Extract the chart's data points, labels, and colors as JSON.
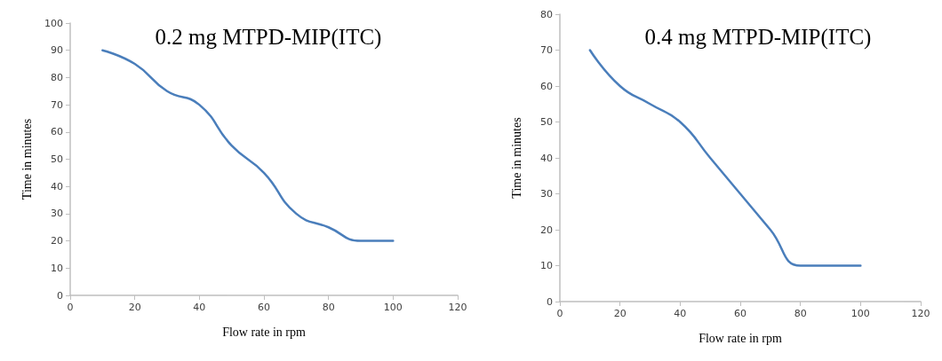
{
  "chart_data": [
    {
      "type": "line",
      "title": "0.2 mg MTPD-MIP(ITC)",
      "xlabel": "Flow rate in rpm",
      "ylabel": "Time in minutes",
      "x": [
        10,
        20,
        30,
        40,
        50,
        60,
        70,
        80,
        90,
        100
      ],
      "series": [
        {
          "color": "#4a7ebb",
          "values": [
            90,
            85,
            75,
            70,
            55,
            45,
            30,
            25,
            20,
            20
          ]
        }
      ],
      "xlim": [
        0,
        120
      ],
      "xticks": [
        0,
        20,
        40,
        60,
        80,
        100,
        120
      ],
      "ylim": [
        0,
        100
      ],
      "yticks": [
        0,
        10,
        20,
        30,
        40,
        50,
        60,
        70,
        80,
        90,
        100
      ],
      "grid": false,
      "marker": "none",
      "line_style": "solid"
    },
    {
      "type": "line",
      "title": "0.4 mg MTPD-MIP(ITC)",
      "xlabel": "Flow rate in rpm",
      "ylabel": "Time in minutes",
      "x": [
        10,
        20,
        30,
        40,
        50,
        60,
        70,
        80,
        90,
        100
      ],
      "series": [
        {
          "color": "#4a7ebb",
          "values": [
            70,
            60,
            55,
            50,
            40,
            30,
            20,
            10,
            10,
            10
          ]
        }
      ],
      "xlim": [
        0,
        120
      ],
      "xticks": [
        0,
        20,
        40,
        60,
        80,
        100,
        120
      ],
      "ylim": [
        0,
        80
      ],
      "yticks": [
        0,
        10,
        20,
        30,
        40,
        50,
        60,
        70,
        80
      ],
      "grid": false,
      "marker": "none",
      "line_style": "solid"
    }
  ]
}
